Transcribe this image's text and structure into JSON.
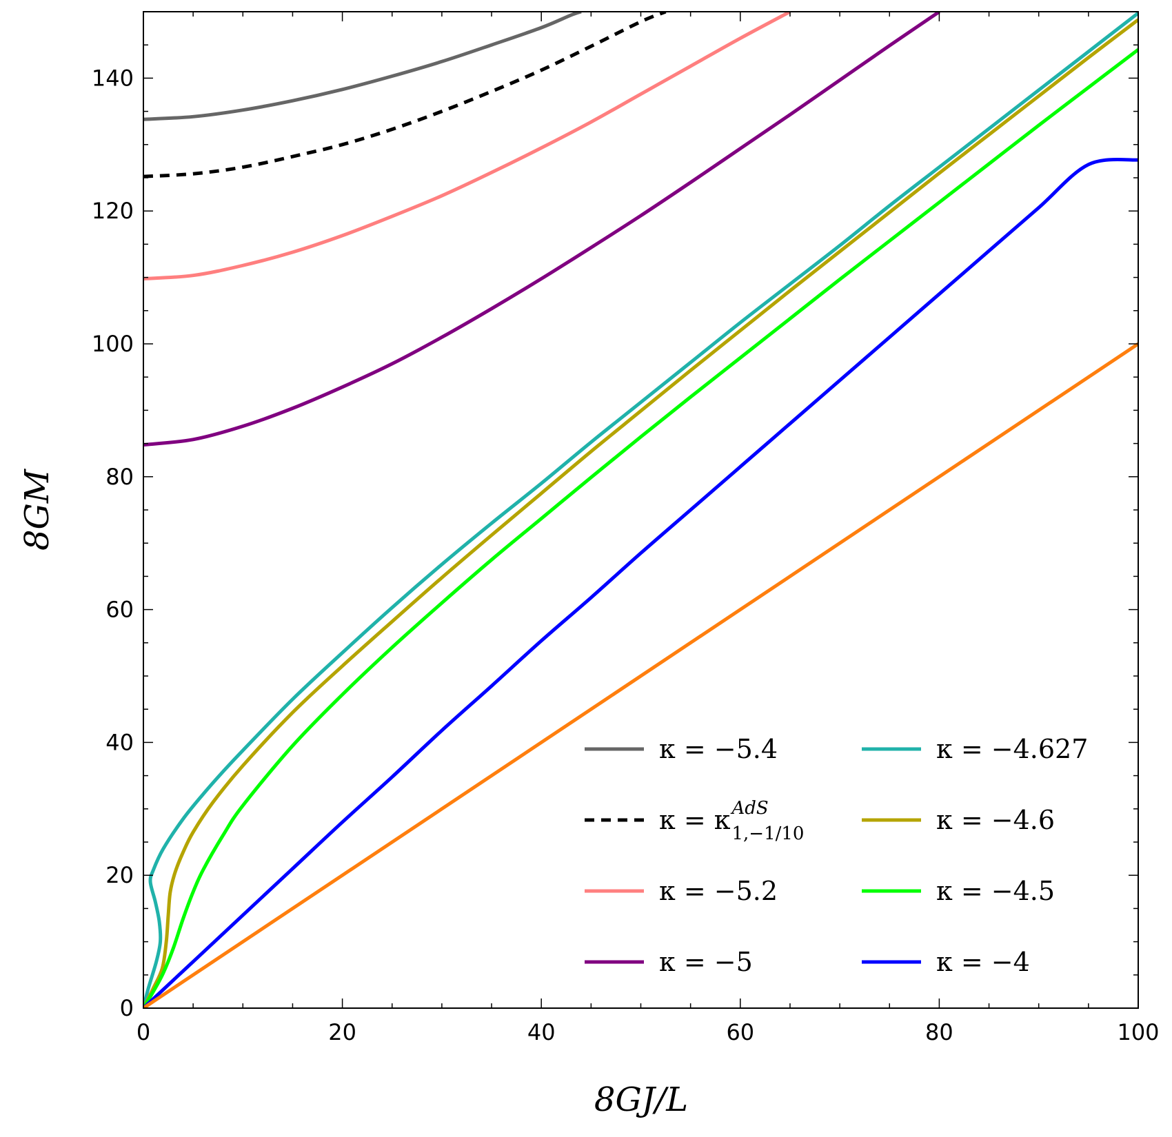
{
  "chart_data": {
    "type": "line",
    "xlabel": "8GJ/L",
    "ylabel": "8GM",
    "xlim": [
      0,
      100
    ],
    "ylim": [
      0,
      150
    ],
    "x_ticks": [
      0,
      20,
      40,
      60,
      80,
      100
    ],
    "y_ticks": [
      0,
      20,
      40,
      60,
      80,
      100,
      120,
      140
    ],
    "grid": false,
    "legend_position": "bottom-right",
    "series": [
      {
        "name": "κ = −5.4",
        "color": "#666666",
        "dash": "solid",
        "points": [
          [
            0,
            133.8
          ],
          [
            5,
            134.2
          ],
          [
            10,
            135.2
          ],
          [
            15,
            136.6
          ],
          [
            20,
            138.3
          ],
          [
            25,
            140.3
          ],
          [
            30,
            142.5
          ],
          [
            35,
            145.0
          ],
          [
            40,
            147.6
          ],
          [
            43,
            149.5
          ],
          [
            44,
            150
          ]
        ]
      },
      {
        "name_parts": {
          "base": "κ = κ",
          "sup": "AdS",
          "sub": "1,−1/10"
        },
        "color": "#000000",
        "dash": "dashed",
        "points": [
          [
            0,
            125.2
          ],
          [
            5,
            125.6
          ],
          [
            10,
            126.6
          ],
          [
            15,
            128.2
          ],
          [
            20,
            130.0
          ],
          [
            25,
            132.3
          ],
          [
            30,
            135.0
          ],
          [
            35,
            138.0
          ],
          [
            40,
            141.2
          ],
          [
            45,
            144.8
          ],
          [
            50,
            148.5
          ],
          [
            52.5,
            150
          ]
        ]
      },
      {
        "name": "κ = −5.2",
        "color": "#ff7f7f",
        "dash": "solid",
        "points": [
          [
            0,
            109.8
          ],
          [
            5,
            110.3
          ],
          [
            10,
            111.8
          ],
          [
            15,
            113.8
          ],
          [
            20,
            116.3
          ],
          [
            25,
            119.2
          ],
          [
            30,
            122.3
          ],
          [
            35,
            125.8
          ],
          [
            40,
            129.5
          ],
          [
            45,
            133.4
          ],
          [
            50,
            137.6
          ],
          [
            55,
            141.8
          ],
          [
            60,
            146.0
          ],
          [
            65,
            150
          ]
        ]
      },
      {
        "name": "κ = −5",
        "color": "#800080",
        "dash": "solid",
        "points": [
          [
            0,
            84.8
          ],
          [
            5,
            85.6
          ],
          [
            10,
            87.6
          ],
          [
            15,
            90.3
          ],
          [
            20,
            93.5
          ],
          [
            25,
            97.0
          ],
          [
            30,
            101.0
          ],
          [
            35,
            105.3
          ],
          [
            40,
            109.8
          ],
          [
            45,
            114.5
          ],
          [
            50,
            119.3
          ],
          [
            55,
            124.3
          ],
          [
            60,
            129.4
          ],
          [
            65,
            134.5
          ],
          [
            70,
            139.7
          ],
          [
            75,
            144.9
          ],
          [
            80,
            150
          ]
        ]
      },
      {
        "name": "κ = −4.627",
        "color": "#20b2aa",
        "dash": "solid",
        "points": [
          [
            0,
            0
          ],
          [
            0.5,
            3
          ],
          [
            1.3,
            7
          ],
          [
            1.7,
            10
          ],
          [
            1.6,
            13
          ],
          [
            1.2,
            16
          ],
          [
            0.7,
            19
          ],
          [
            1.0,
            20.8
          ],
          [
            2,
            24
          ],
          [
            4,
            28.5
          ],
          [
            6,
            32.2
          ],
          [
            8,
            35.6
          ],
          [
            10,
            38.8
          ],
          [
            15,
            46.5
          ],
          [
            20,
            53.5
          ],
          [
            25,
            60.3
          ],
          [
            30,
            66.8
          ],
          [
            35,
            73.0
          ],
          [
            40,
            79.0
          ],
          [
            45,
            85.2
          ],
          [
            50,
            91.2
          ],
          [
            55,
            97.2
          ],
          [
            60,
            103.2
          ],
          [
            65,
            109.0
          ],
          [
            70,
            114.8
          ],
          [
            75,
            120.8
          ],
          [
            80,
            126.6
          ],
          [
            85,
            132.4
          ],
          [
            90,
            138.2
          ],
          [
            95,
            144.0
          ],
          [
            100,
            149.8
          ]
        ]
      },
      {
        "name": "κ = −4.6",
        "color": "#b5a400",
        "dash": "solid",
        "points": [
          [
            0,
            0
          ],
          [
            1,
            3
          ],
          [
            1.9,
            6
          ],
          [
            2.3,
            10
          ],
          [
            2.5,
            14
          ],
          [
            2.7,
            17.5
          ],
          [
            3.2,
            20.5
          ],
          [
            4,
            23.5
          ],
          [
            5,
            26.5
          ],
          [
            7,
            31.0
          ],
          [
            10,
            36.5
          ],
          [
            15,
            44.5
          ],
          [
            20,
            51.5
          ],
          [
            25,
            58.2
          ],
          [
            30,
            64.8
          ],
          [
            35,
            71.2
          ],
          [
            40,
            77.5
          ],
          [
            45,
            83.8
          ],
          [
            50,
            89.9
          ],
          [
            55,
            96.0
          ],
          [
            60,
            102.0
          ],
          [
            65,
            108.0
          ],
          [
            70,
            113.9
          ],
          [
            75,
            119.8
          ],
          [
            80,
            125.7
          ],
          [
            85,
            131.5
          ],
          [
            90,
            137.3
          ],
          [
            95,
            143.1
          ],
          [
            100,
            148.8
          ]
        ]
      },
      {
        "name": "κ = −4.5",
        "color": "#00ff00",
        "dash": "solid",
        "points": [
          [
            0,
            0
          ],
          [
            1,
            2.5
          ],
          [
            2,
            5.3
          ],
          [
            3,
            9
          ],
          [
            4,
            13.5
          ],
          [
            5,
            17.5
          ],
          [
            6,
            20.8
          ],
          [
            8,
            26.0
          ],
          [
            10,
            30.5
          ],
          [
            15,
            39.5
          ],
          [
            20,
            47.2
          ],
          [
            25,
            54.3
          ],
          [
            30,
            61.0
          ],
          [
            35,
            67.5
          ],
          [
            40,
            73.7
          ],
          [
            45,
            79.9
          ],
          [
            50,
            86.0
          ],
          [
            55,
            92.0
          ],
          [
            60,
            97.9
          ],
          [
            65,
            103.8
          ],
          [
            70,
            109.7
          ],
          [
            75,
            115.5
          ],
          [
            80,
            121.3
          ],
          [
            85,
            127.1
          ],
          [
            90,
            132.9
          ],
          [
            95,
            138.6
          ],
          [
            100,
            144.3
          ]
        ]
      },
      {
        "name": "κ = −4",
        "color": "#0000ff",
        "dash": "solid",
        "points": [
          [
            0,
            0
          ],
          [
            2,
            2.8
          ],
          [
            5,
            7.0
          ],
          [
            10,
            14.0
          ],
          [
            15,
            21.0
          ],
          [
            20,
            28.0
          ],
          [
            25,
            34.8
          ],
          [
            30,
            41.8
          ],
          [
            35,
            48.5
          ],
          [
            40,
            55.3
          ],
          [
            45,
            61.8
          ],
          [
            50,
            68.5
          ],
          [
            55,
            75.0
          ],
          [
            60,
            81.5
          ],
          [
            65,
            88.0
          ],
          [
            70,
            94.5
          ],
          [
            75,
            101.0
          ],
          [
            80,
            107.5
          ],
          [
            85,
            114.0
          ],
          [
            90,
            120.5
          ],
          [
            95,
            127.0
          ],
          [
            100,
            127.7
          ]
        ]
      },
      {
        "color": "#ff7f0e",
        "dash": "solid",
        "points": [
          [
            0,
            0
          ],
          [
            100,
            100
          ]
        ]
      }
    ],
    "legend": [
      {
        "series": 0,
        "text": "κ = −5.4"
      },
      {
        "series": 1,
        "text_parts": {
          "base": "κ = κ",
          "sup": "AdS",
          "sub": "1,−1/10"
        }
      },
      {
        "series": 2,
        "text": "κ = −5.2"
      },
      {
        "series": 3,
        "text": "κ = −5"
      },
      {
        "series": 4,
        "text": "κ = −4.627"
      },
      {
        "series": 5,
        "text": "κ = −4.6"
      },
      {
        "series": 6,
        "text": "κ = −4.5"
      },
      {
        "series": 7,
        "text": "κ = −4"
      }
    ]
  }
}
